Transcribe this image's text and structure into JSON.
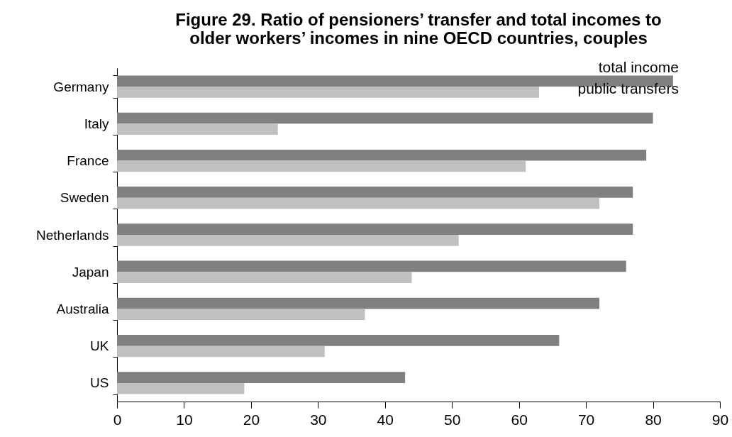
{
  "chart_data": {
    "type": "bar",
    "orientation": "horizontal",
    "title": "Figure 29.  Ratio of pensioners’ transfer and total incomes to older workers’ incomes in nine OECD countries, couples",
    "categories": [
      "Germany",
      "Italy",
      "France",
      "Sweden",
      "Netherlands",
      "Japan",
      "Australia",
      "UK",
      "US"
    ],
    "series": [
      {
        "name": "total income",
        "color": "#808080",
        "values": [
          83,
          80,
          79,
          77,
          77,
          76,
          72,
          66,
          43
        ]
      },
      {
        "name": "public transfers",
        "color": "#c0c0c0",
        "values": [
          63,
          24,
          61,
          72,
          51,
          44,
          37,
          31,
          19
        ]
      }
    ],
    "xlim": [
      0,
      90
    ],
    "xticks": [
      0,
      10,
      20,
      30,
      40,
      50,
      60,
      70,
      80,
      90
    ],
    "grid": false
  }
}
